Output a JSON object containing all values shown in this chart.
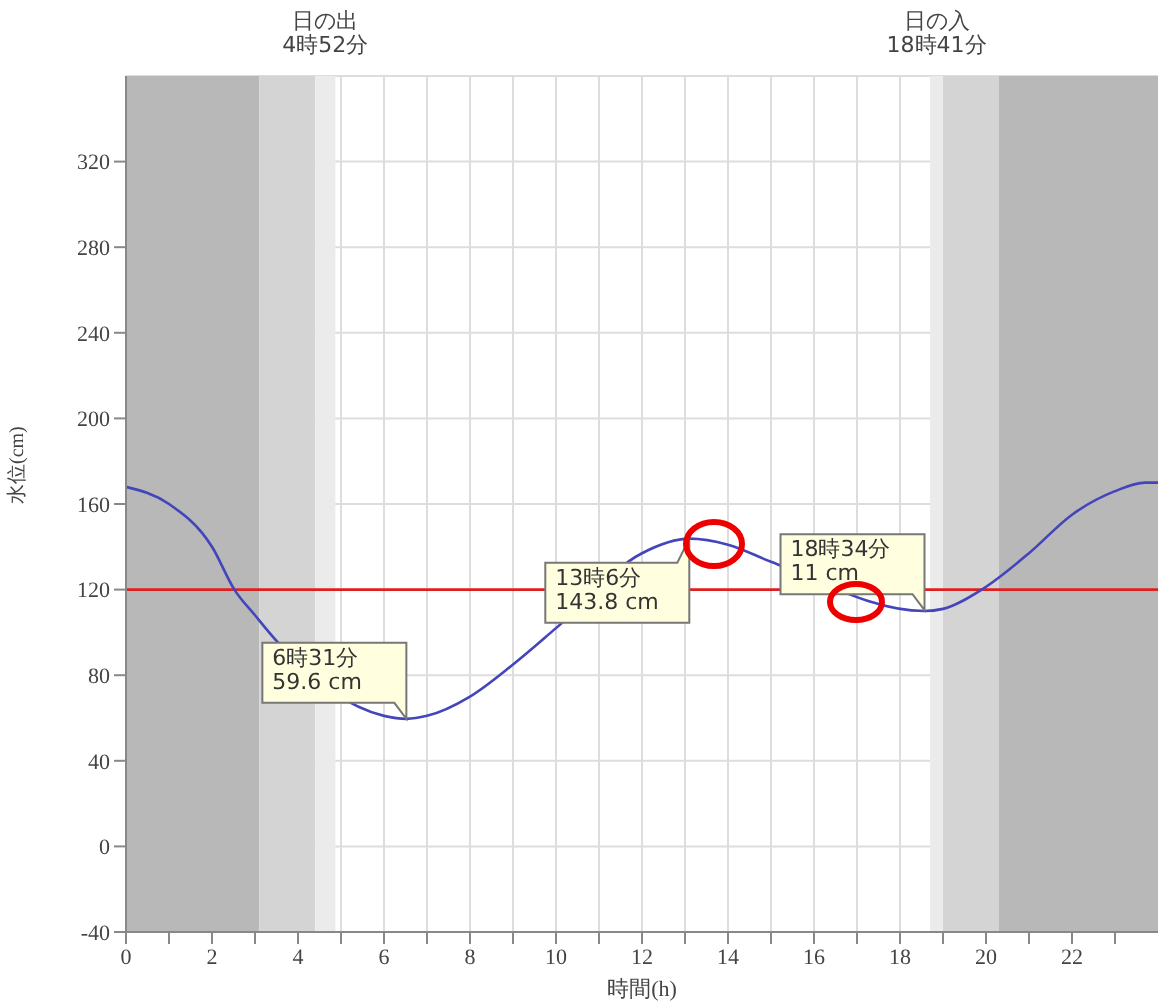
{
  "chart_data": {
    "type": "line",
    "xlabel": "時間(h)",
    "ylabel": "水位(cm)",
    "x": [
      0,
      1,
      2,
      2.52,
      3,
      3.5,
      6,
      6.52,
      7,
      8,
      9,
      10,
      12,
      13.1,
      14,
      15,
      18.57,
      19,
      19.9,
      21,
      22,
      23,
      23.7,
      24
    ],
    "series": [
      {
        "color": "#4444bb",
        "values": [
          168,
          160,
          140,
          120,
          108,
          96,
          61,
          59.6,
          61,
          70,
          85,
          102,
          137,
          143.8,
          141,
          133,
          110,
          111,
          120,
          137,
          155,
          166,
          170,
          170
        ]
      }
    ],
    "xlim": [
      0,
      24
    ],
    "xticks": [
      0,
      {
        "value": 1,
        "label": null
      },
      2,
      {
        "value": 3,
        "label": null
      },
      4,
      {
        "value": 5,
        "label": null
      },
      6,
      {
        "value": 7,
        "label": null
      },
      8,
      {
        "value": 9,
        "label": null
      },
      10,
      {
        "value": 11,
        "label": null
      },
      12,
      {
        "value": 13,
        "label": null
      },
      14,
      {
        "value": 15,
        "label": null
      },
      16,
      {
        "value": 17,
        "label": null
      },
      18,
      {
        "value": 19,
        "label": null
      },
      20,
      {
        "value": 21,
        "label": null
      },
      22,
      {
        "value": 23,
        "label": null
      }
    ],
    "ylim": [
      -40,
      360
    ],
    "yticks": [
      -40,
      0,
      40,
      80,
      120,
      160,
      200,
      240,
      280,
      320
    ],
    "grid": true,
    "marker": "none",
    "line_style": "solid",
    "ref_lines": [
      {
        "axis": "y",
        "value": 120,
        "color": "#e02020"
      }
    ],
    "bands": [
      {
        "axis": "x",
        "from": 0,
        "to": 3.1,
        "color": "#b8b8b8"
      },
      {
        "axis": "x",
        "from": 3.1,
        "to": 4.4,
        "color": "#d4d4d4"
      },
      {
        "axis": "x",
        "from": 4.4,
        "to": 4.87,
        "color": "#ebebeb",
        "label": "日の出\n4時52分"
      },
      {
        "axis": "x",
        "from": 18.7,
        "to": 19,
        "color": "#ebebeb",
        "label": "日の入\n18時41分"
      },
      {
        "axis": "x",
        "from": 19,
        "to": 20.3,
        "color": "#d4d4d4"
      },
      {
        "axis": "x",
        "from": 20.3,
        "to": 24,
        "color": "#b8b8b8"
      }
    ],
    "annotations": [
      {
        "text": "6時31分\n59.6 cm",
        "x": 6.52,
        "y": 59.6
      },
      {
        "text": "13時6分\n143.8 cm",
        "x": 13.1,
        "y": 143.8
      },
      {
        "text": "18時34分\n11 cm",
        "x": 18.57,
        "y": 110.4
      }
    ]
  }
}
